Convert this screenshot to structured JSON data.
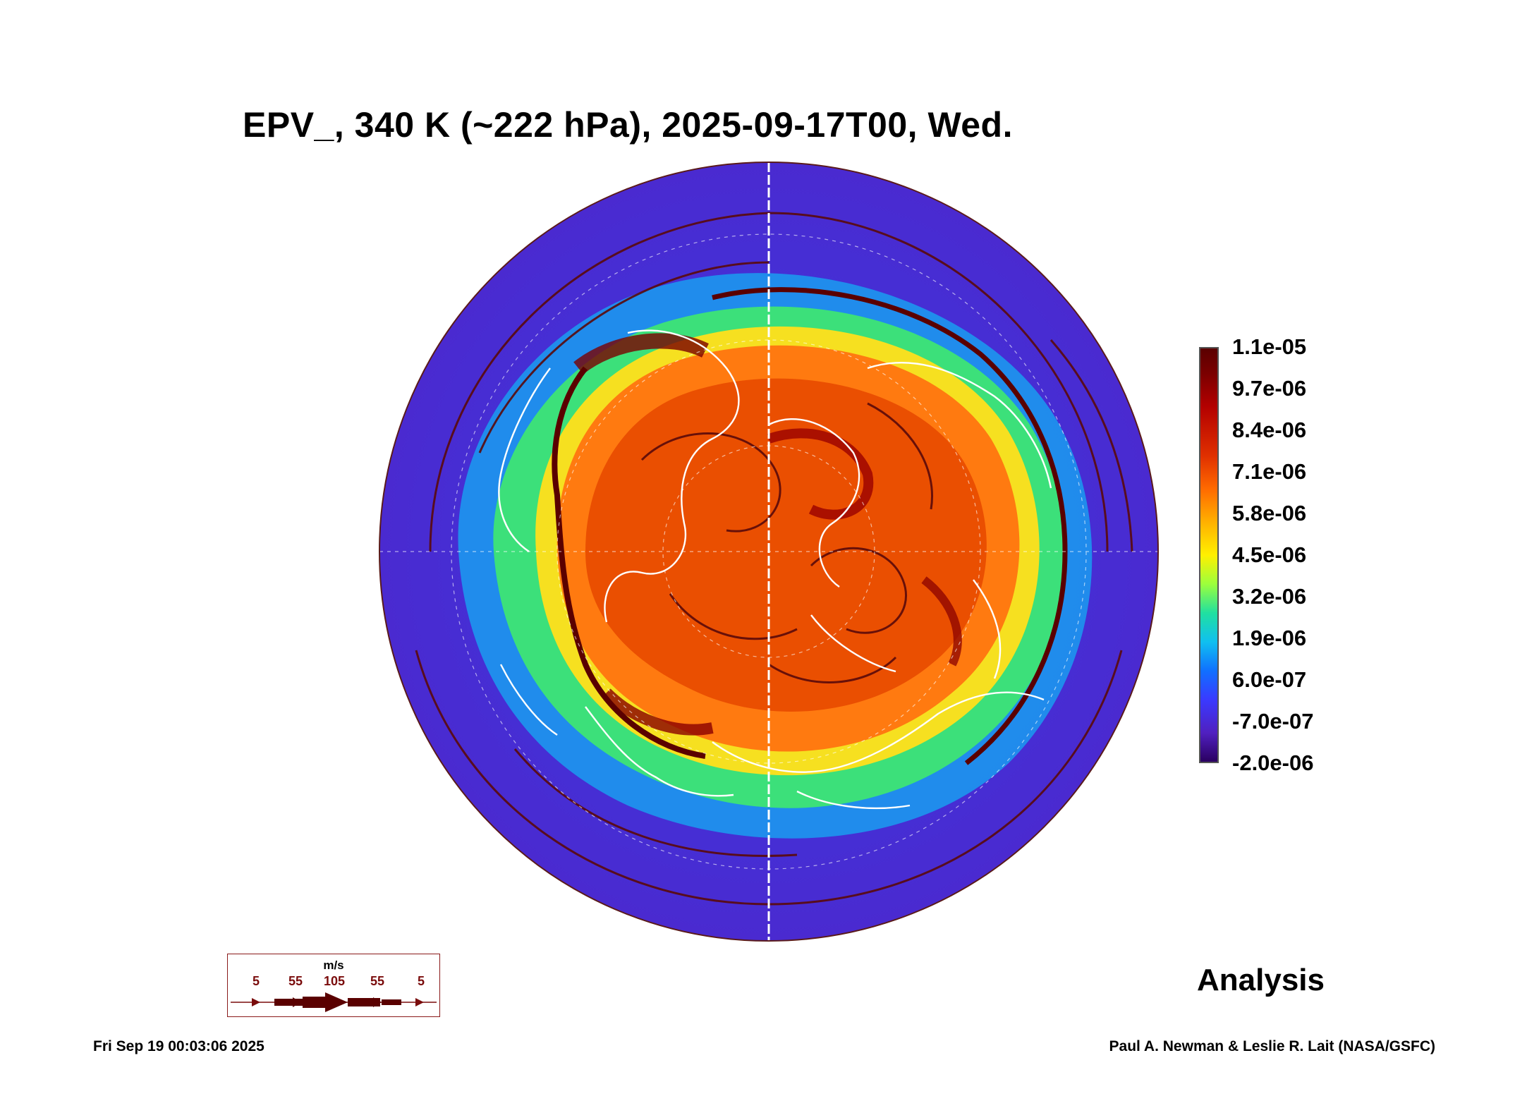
{
  "title": "EPV_, 340 K (~222 hPa), 2025-09-17T00, Wed.",
  "colorbar": {
    "labels": [
      "1.1e-05",
      "9.7e-06",
      "8.4e-06",
      "7.1e-06",
      "5.8e-06",
      "4.5e-06",
      "3.2e-06",
      "1.9e-06",
      "6.0e-07",
      "-7.0e-07",
      "-2.0e-06"
    ]
  },
  "wind_legend": {
    "unit": "m/s",
    "values": [
      "5",
      "55",
      "105",
      "55",
      "5"
    ]
  },
  "analysis_label": "Analysis",
  "timestamp": "Fri Sep 19 00:03:06 2025",
  "credit": "Paul A. Newman & Leslie R. Lait (NASA/GSFC)",
  "colors": {
    "outer_low": "#3a3ae0",
    "mid": "#20d080",
    "high": "#ff6a00",
    "peak": "#7a0000",
    "coast": "#ffffff",
    "streamline": "#5a0a0a"
  }
}
